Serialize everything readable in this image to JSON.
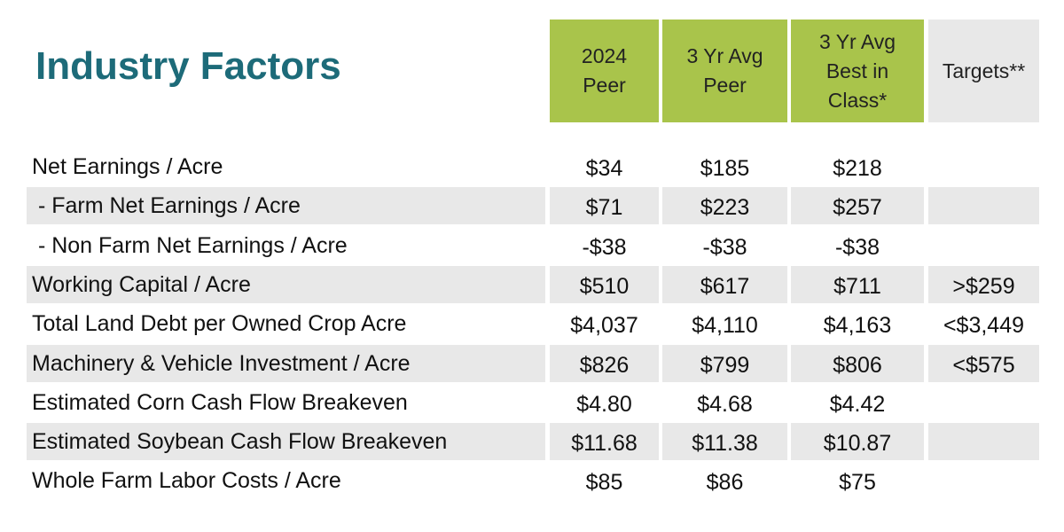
{
  "title": "Industry Factors",
  "header": {
    "columns": [
      [
        "2024",
        "Peer"
      ],
      [
        "3 Yr Avg",
        "Peer"
      ],
      [
        "3 Yr Avg",
        "Best in",
        "Class*"
      ],
      [
        "Targets**"
      ]
    ]
  },
  "table": {
    "rows": [
      {
        "label": "Net Earnings / Acre",
        "values": [
          "$34",
          "$185",
          "$218"
        ]
      },
      {
        "label": " - Farm Net Earnings / Acre",
        "values": [
          "$71",
          "$223",
          "$257"
        ]
      },
      {
        "label": " - Non Farm Net Earnings / Acre",
        "values": [
          "-$38",
          "-$38",
          "-$38"
        ]
      },
      {
        "label": "Working Capital / Acre",
        "values": [
          "$510",
          "$617",
          "$711"
        ],
        "target": ">$259"
      },
      {
        "label": "Total Land Debt per Owned Crop Acre",
        "values": [
          "$4,037",
          "$4,110",
          "$4,163"
        ],
        "target": "<$3,449"
      },
      {
        "label": "Machinery & Vehicle Investment / Acre",
        "values": [
          "$826",
          "$799",
          "$806"
        ],
        "target": "<$575"
      },
      {
        "label": "Estimated Corn Cash Flow Breakeven",
        "values": [
          "$4.80",
          "$4.68",
          "$4.42"
        ]
      },
      {
        "label": "Estimated Soybean Cash Flow Breakeven",
        "values": [
          "$11.68",
          "$11.38",
          "$10.87"
        ]
      },
      {
        "label": "Whole Farm Labor Costs / Acre",
        "values": [
          "$85",
          "$86",
          "$75"
        ]
      }
    ]
  }
}
